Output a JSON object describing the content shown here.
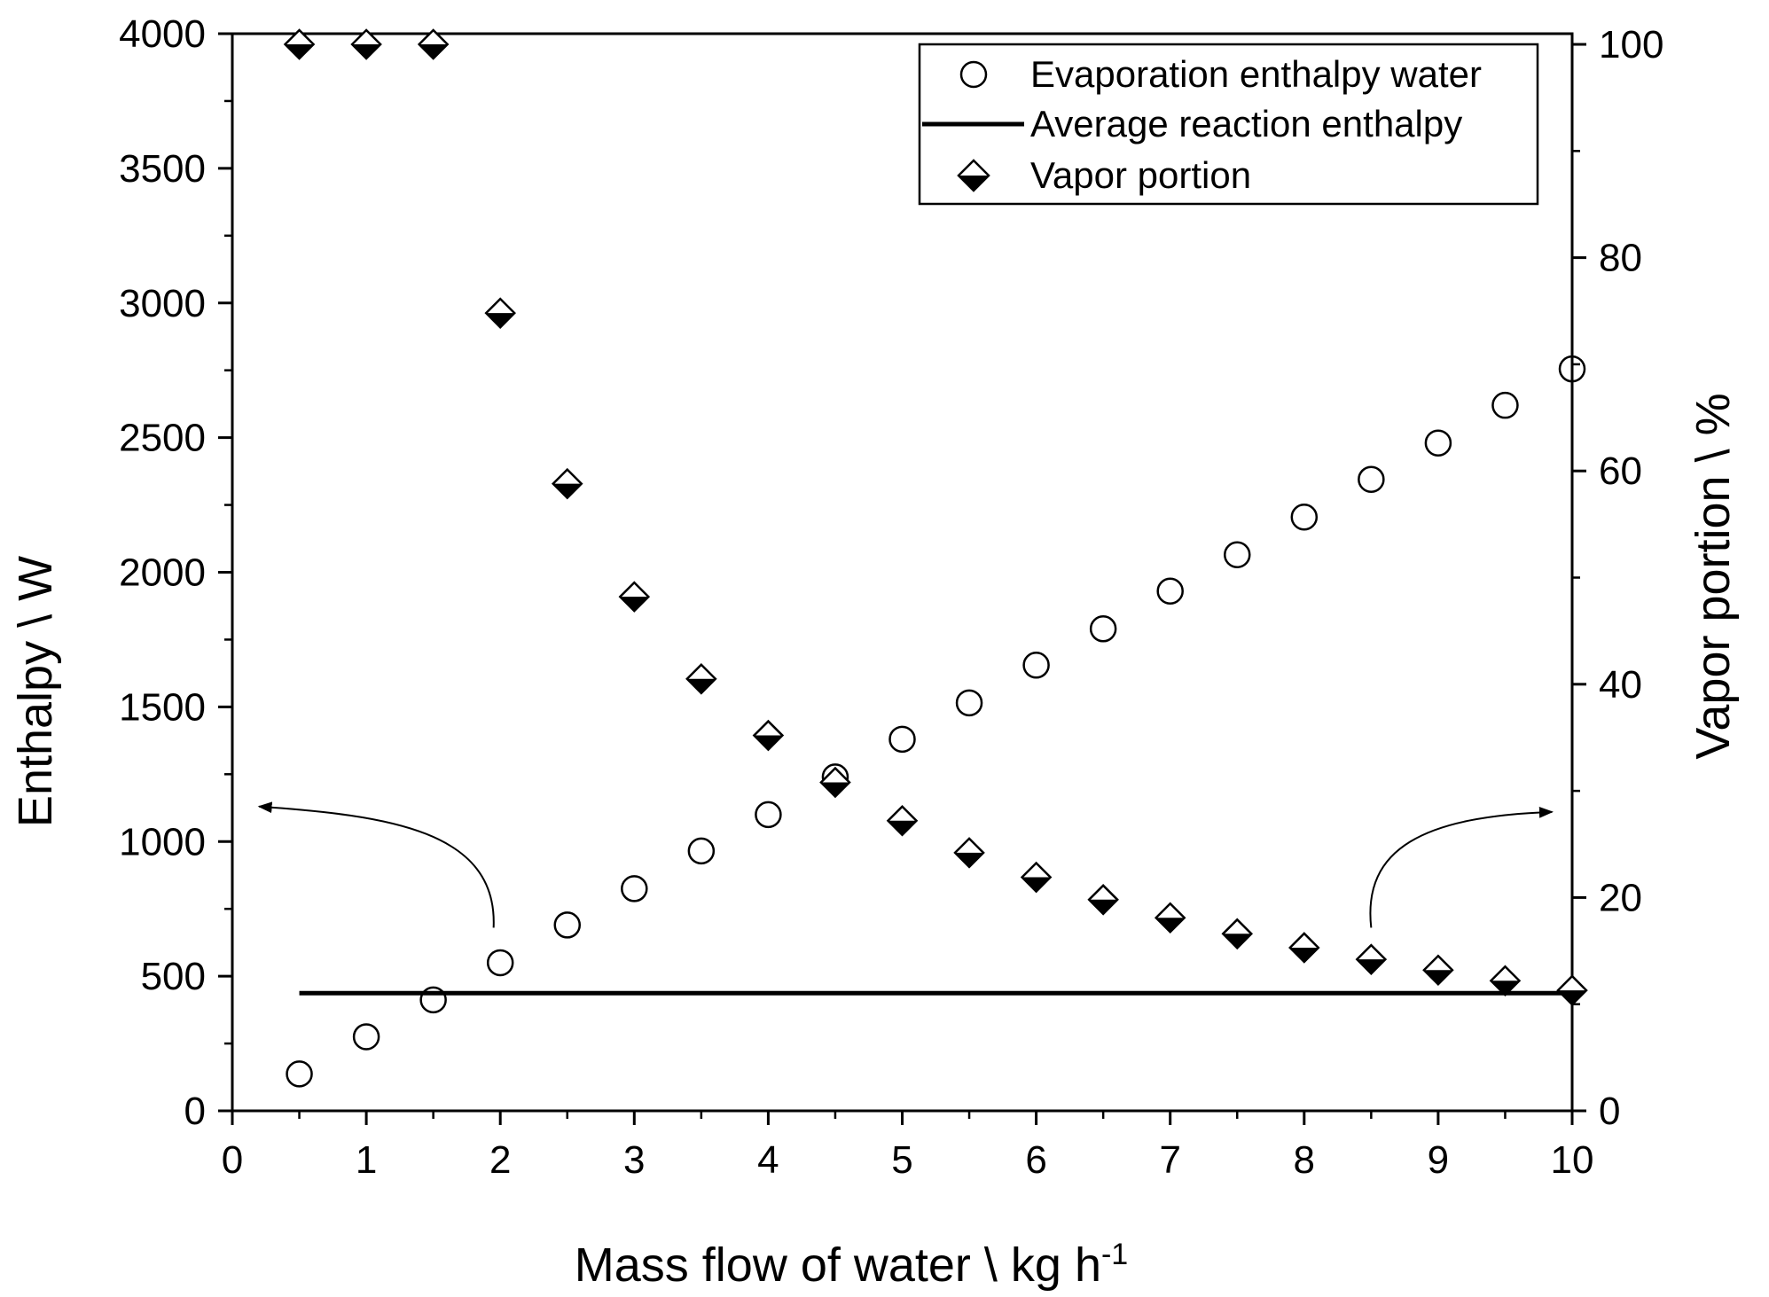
{
  "chart_data": {
    "type": "scatter",
    "x_axis": {
      "label_main": "Mass flow of water \\ kg h",
      "label_superscript": "-1",
      "range": [
        0,
        10
      ],
      "ticks": [
        "0",
        "1",
        "2",
        "3",
        "4",
        "5",
        "6",
        "7",
        "8",
        "9",
        "10"
      ]
    },
    "y_left": {
      "label": "Enthalpy \\ W",
      "range": [
        0,
        4000
      ],
      "ticks": [
        "0",
        "500",
        "1000",
        "1500",
        "2000",
        "2500",
        "3000",
        "3500",
        "4000"
      ]
    },
    "y_right": {
      "label": "Vapor portion \\ %",
      "range": [
        0,
        101
      ],
      "ticks": [
        "0",
        "20",
        "40",
        "60",
        "80",
        "100"
      ]
    },
    "series": [
      {
        "name": "Evaporation enthalpy water",
        "axis": "left",
        "marker": "open-circle",
        "x": [
          0.5,
          1,
          1.5,
          2,
          2.5,
          3,
          3.5,
          4,
          4.5,
          5,
          5.5,
          6,
          6.5,
          7,
          7.5,
          8,
          8.5,
          9,
          9.5,
          10
        ],
        "y": [
          137,
          275,
          412,
          550,
          690,
          825,
          965,
          1100,
          1240,
          1380,
          1515,
          1655,
          1790,
          1930,
          2065,
          2205,
          2345,
          2480,
          2620,
          2755
        ]
      },
      {
        "name": "Average reaction enthalpy",
        "axis": "left",
        "marker": "line",
        "x": [
          0.5,
          10
        ],
        "y": [
          437,
          437
        ]
      },
      {
        "name": "Vapor portion",
        "axis": "right",
        "marker": "half-filled-diamond",
        "x": [
          0.5,
          1,
          1.5,
          2,
          2.5,
          3,
          3.5,
          4,
          4.5,
          5,
          5.5,
          6,
          6.5,
          7,
          7.5,
          8,
          8.5,
          9,
          9.5,
          10
        ],
        "y": [
          100,
          100,
          100,
          74.8,
          58.8,
          48.2,
          40.5,
          35.2,
          30.8,
          27.2,
          24.2,
          21.9,
          19.8,
          18.1,
          16.6,
          15.3,
          14.2,
          13.2,
          12.2,
          11.3
        ]
      }
    ],
    "annotations": [
      {
        "type": "curved-arrow",
        "from_data": [
          1.95,
          680
        ],
        "to_data": [
          0.2,
          1130
        ],
        "target_axis": "left"
      },
      {
        "type": "curved-arrow",
        "from_data": [
          8.5,
          680
        ],
        "to_data": [
          9.85,
          1110
        ],
        "target_axis": "right"
      }
    ],
    "legend_position": "top-right",
    "grid": false
  },
  "colors": {
    "ink": "#000000",
    "background": "#ffffff"
  }
}
